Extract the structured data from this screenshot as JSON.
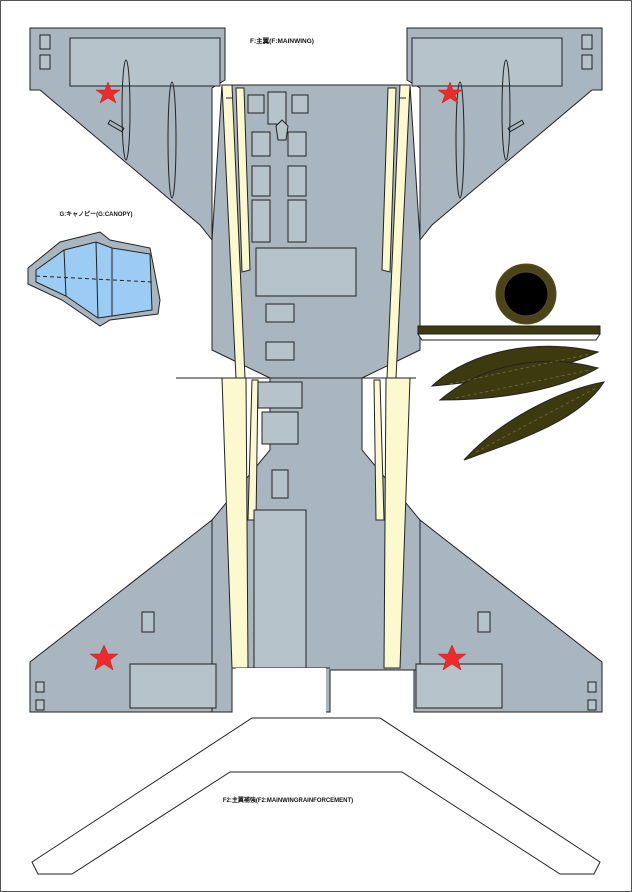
{
  "labels": {
    "main_wing": "F:主翼(F:MAINWING)",
    "canopy": "G:キャノピー(G:CANOPY)",
    "reinforcement": "F2:主翼補強(F2:MAINWINGRAINFORCEMENT)"
  },
  "colors": {
    "panel_gray": "#a9b6bf",
    "panel_light": "#b7c3cb",
    "cream": "#fcf9cf",
    "canopy_blue": "#9ccbf3",
    "star_red": "#ee2b2b",
    "olive": "#3d3a10",
    "outline": "#222222"
  },
  "icons": [
    "red-star-icon",
    "red-star-icon",
    "red-star-icon",
    "red-star-icon"
  ]
}
